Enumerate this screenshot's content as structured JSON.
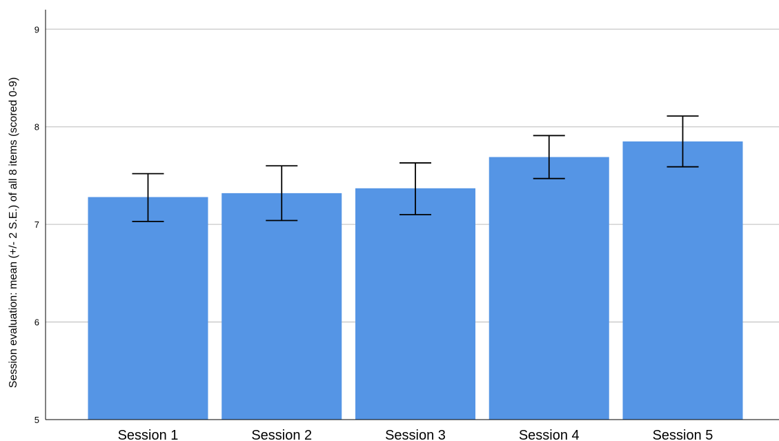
{
  "chart_data": {
    "type": "bar",
    "categories": [
      "Session 1",
      "Session 2",
      "Session 3",
      "Session 4",
      "Session 5"
    ],
    "values": [
      7.28,
      7.32,
      7.37,
      7.69,
      7.85
    ],
    "error_low": [
      7.03,
      7.04,
      7.1,
      7.47,
      7.59
    ],
    "error_high": [
      7.52,
      7.6,
      7.63,
      7.91,
      8.11
    ],
    "ylabel": "Session evaluation: mean (+/- 2 S.E.) of all 8 items (scored 0-9)",
    "xlabel": "",
    "title": "",
    "ylim": [
      5,
      9.2
    ],
    "yticks": [
      5,
      6,
      7,
      8,
      9
    ],
    "grid": true,
    "bar_color": "#5595e5"
  }
}
